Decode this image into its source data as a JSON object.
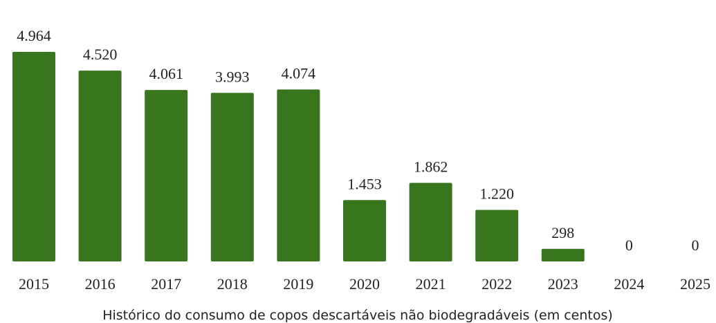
{
  "chart_data": {
    "type": "bar",
    "title": "Histórico do consumo de copos descartáveis não biodegradáveis (em centos)",
    "categories": [
      "2015",
      "2016",
      "2017",
      "2018",
      "2019",
      "2020",
      "2021",
      "2022",
      "2023",
      "2024",
      "2025"
    ],
    "values": [
      4964,
      4520,
      4061,
      3993,
      4074,
      1453,
      1862,
      1220,
      298,
      0,
      0
    ],
    "value_labels": [
      "4.964",
      "4.520",
      "4.061",
      "3.993",
      "4.074",
      "1.453",
      "1.862",
      "1.220",
      "298",
      "0",
      "0"
    ],
    "color": "#38761d"
  }
}
